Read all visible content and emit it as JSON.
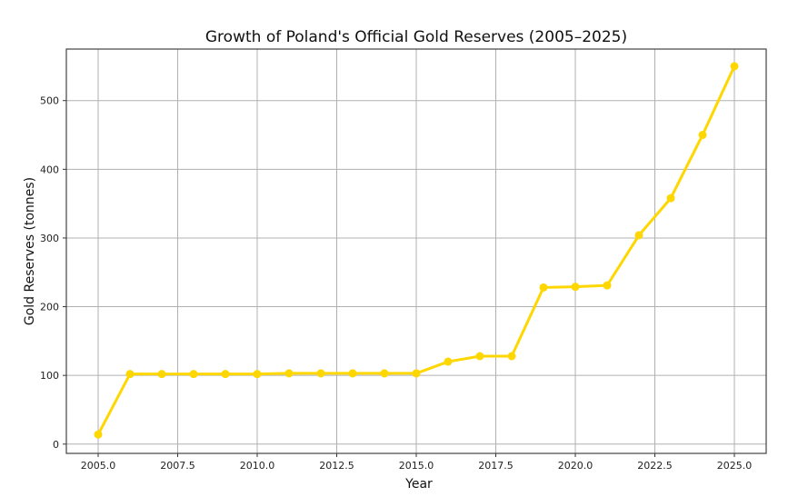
{
  "chart_data": {
    "type": "line",
    "title": "Growth of Poland's Official Gold Reserves (2005–2025)",
    "xlabel": "Year",
    "ylabel": "Gold Reserves (tonnes)",
    "x": [
      2005,
      2006,
      2007,
      2008,
      2009,
      2010,
      2011,
      2012,
      2013,
      2014,
      2015,
      2016,
      2017,
      2018,
      2019,
      2020,
      2021,
      2022,
      2023,
      2024,
      2025
    ],
    "series": [
      {
        "values": [
          14,
          102,
          102,
          102,
          102,
          102,
          103,
          103,
          103,
          103,
          103,
          120,
          128,
          128,
          228,
          229,
          231,
          304,
          358,
          450,
          550
        ],
        "color": "#FFD700"
      }
    ],
    "xticks": [
      "2005.0",
      "2007.5",
      "2010.0",
      "2012.5",
      "2015.0",
      "2017.5",
      "2020.0",
      "2022.5",
      "2025.0"
    ],
    "yticks": [
      "0",
      "100",
      "200",
      "300",
      "400",
      "500"
    ],
    "xlim": [
      2004,
      2026
    ],
    "ylim": [
      -13.5,
      575
    ],
    "grid": true,
    "marker": "circle"
  }
}
